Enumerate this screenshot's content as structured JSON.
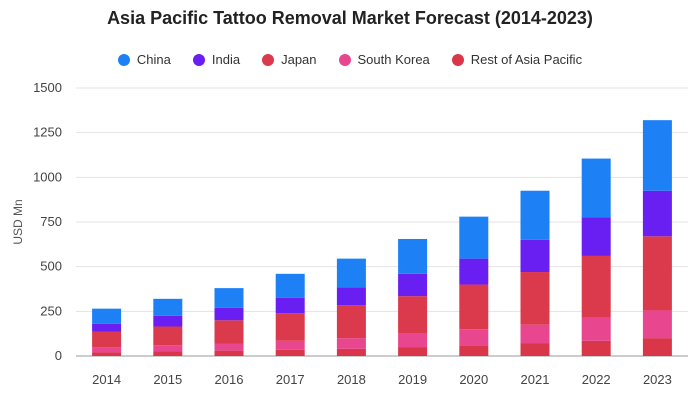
{
  "chart_data": {
    "type": "bar",
    "stacked": true,
    "title": "Asia Pacific Tattoo Removal Market Forecast (2014-2023)",
    "xlabel": "",
    "ylabel": "USD Mn",
    "ylim": [
      0,
      1500
    ],
    "yticks": [
      "0",
      "250",
      "500",
      "750",
      "1000",
      "1250",
      "1500"
    ],
    "grid": true,
    "legend_position": "top",
    "categories": [
      "2014",
      "2015",
      "2016",
      "2017",
      "2018",
      "2019",
      "2020",
      "2021",
      "2022",
      "2023"
    ],
    "series": [
      {
        "name": "Rest of Asia Pacific",
        "color": "#d9364a",
        "values": [
          20,
          25,
          30,
          35,
          40,
          50,
          60,
          70,
          85,
          100
        ]
      },
      {
        "name": "South Korea",
        "color": "#e8468f",
        "values": [
          30,
          35,
          40,
          50,
          60,
          75,
          90,
          105,
          130,
          155
        ]
      },
      {
        "name": "Japan",
        "color": "#db3a4d",
        "values": [
          85,
          105,
          130,
          155,
          185,
          210,
          250,
          295,
          345,
          415
        ]
      },
      {
        "name": "India",
        "color": "#6a1ff2",
        "values": [
          45,
          60,
          70,
          85,
          100,
          125,
          145,
          180,
          215,
          255
        ]
      },
      {
        "name": "China",
        "color": "#1e80f5",
        "values": [
          85,
          95,
          110,
          135,
          160,
          195,
          235,
          275,
          330,
          395
        ]
      }
    ]
  },
  "legend_order": [
    "China",
    "India",
    "Japan",
    "South Korea",
    "Rest of Asia Pacific"
  ]
}
